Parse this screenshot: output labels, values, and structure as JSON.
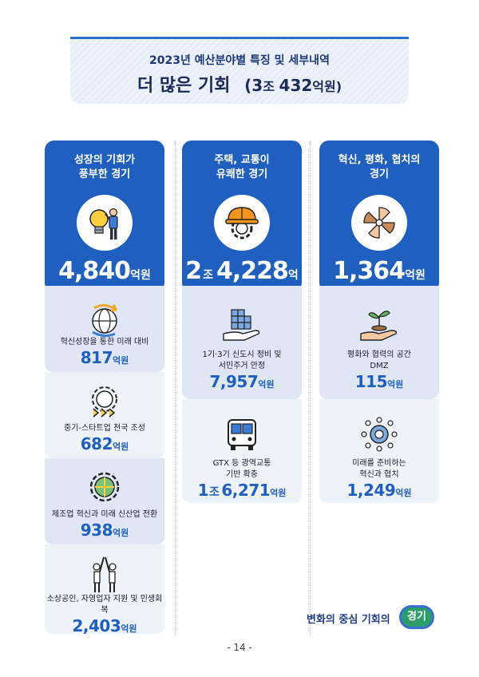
{
  "header": {
    "subtitle": "2023년 예산분야별 특징 및 세부내역",
    "title": "더 많은 기회",
    "total_open": "(3",
    "total_jo": "조",
    "total_rest": "432",
    "total_unit": "억원)"
  },
  "columns": [
    {
      "title_line1": "성장의 기회가",
      "title_line2": "풍부한 경기",
      "icon": "lightbulb-person-icon",
      "amount_pre": "",
      "amount_jo": "",
      "amount": "4,840",
      "unit": "억원",
      "items": [
        {
          "label": "혁신성장을 통한 미래 대비",
          "label2": "",
          "value_pre": "",
          "value_jo": "",
          "value": "817",
          "unit": "억원",
          "icon": "globe-arrows-icon"
        },
        {
          "label": "중기-스타트업 천국 조성",
          "label2": "",
          "value_pre": "",
          "value_jo": "",
          "value": "682",
          "unit": "억원",
          "icon": "gear-chevrons-icon"
        },
        {
          "label": "제조업 혁신과 미래 신산업 전환",
          "label2": "",
          "value_pre": "",
          "value_jo": "",
          "value": "938",
          "unit": "억원",
          "icon": "gear-puzzle-icon"
        },
        {
          "label": "소상공인, 자영업자 지원 및 민생회복",
          "label2": "",
          "value_pre": "",
          "value_jo": "",
          "value": "2,403",
          "unit": "억원",
          "icon": "people-highfive-icon"
        }
      ]
    },
    {
      "title_line1": "주택, 교통이",
      "title_line2": "유쾌한 경기",
      "icon": "hardhat-gear-icon",
      "amount_pre": "2",
      "amount_jo": "조",
      "amount": "4,228",
      "unit": "억원",
      "items": [
        {
          "label": "1기·3기 신도시 정비 및",
          "label2": "서민주거 안정",
          "value_pre": "",
          "value_jo": "",
          "value": "7,957",
          "unit": "억원",
          "icon": "hand-blocks-icon"
        },
        {
          "label": "GTX 등 광역교통",
          "label2": "기반 확충",
          "value_pre": "1",
          "value_jo": "조",
          "value": "6,271",
          "unit": "억원",
          "icon": "bus-icon"
        }
      ]
    },
    {
      "title_line1": "혁신, 평화, 협치의",
      "title_line2": "경기",
      "icon": "hands-circle-icon",
      "amount_pre": "",
      "amount_jo": "",
      "amount": "1,364",
      "unit": "억원",
      "items": [
        {
          "label": "평화와 협력의 공간",
          "label2": "DMZ",
          "value_pre": "",
          "value_jo": "",
          "value": "115",
          "unit": "억원",
          "icon": "hand-sprout-icon"
        },
        {
          "label": "미래를 준비하는",
          "label2": "혁신과 협치",
          "value_pre": "",
          "value_jo": "",
          "value": "1,249",
          "unit": "억원",
          "icon": "network-people-icon"
        }
      ]
    }
  ],
  "footer": {
    "slogan": "변화의 중심 기회의",
    "badge": "경기",
    "page": "- 14 -"
  },
  "colors": {
    "primary": "#1f5fbf",
    "card": "#dfe7f4",
    "badge": "#2a9d6b"
  }
}
